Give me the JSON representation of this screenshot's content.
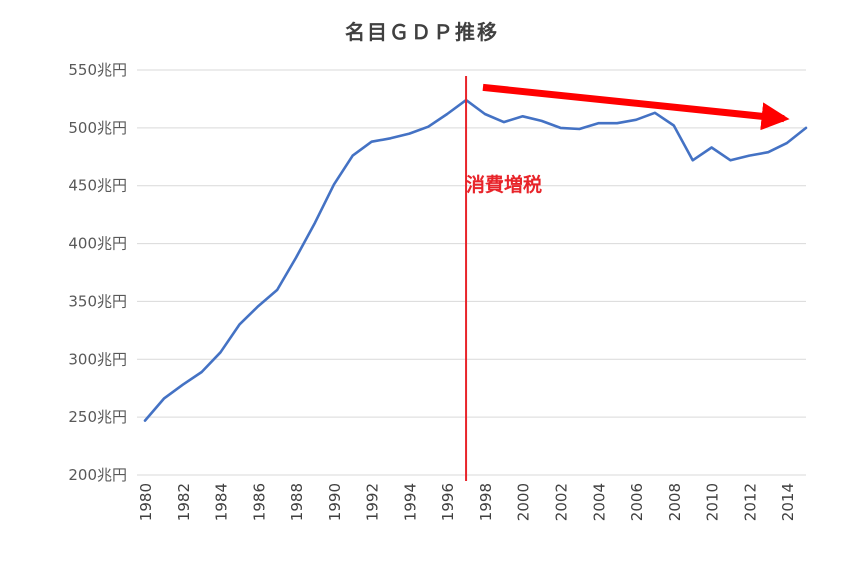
{
  "chart_data": {
    "type": "line",
    "title": "名目ＧＤＰ推移",
    "xlabel": "",
    "ylabel": "",
    "grid": "horizontal",
    "xlim": [
      1980,
      2015
    ],
    "ylim": [
      200,
      550
    ],
    "y_ticks": [
      200,
      250,
      300,
      350,
      400,
      450,
      500,
      550
    ],
    "y_tick_labels": [
      "200兆円",
      "250兆円",
      "300兆円",
      "350兆円",
      "400兆円",
      "450兆円",
      "500兆円",
      "550兆円"
    ],
    "x_ticks": [
      1980,
      1982,
      1984,
      1986,
      1988,
      1990,
      1992,
      1994,
      1996,
      1998,
      2000,
      2002,
      2004,
      2006,
      2008,
      2010,
      2012,
      2014
    ],
    "x_tick_labels": [
      "1980",
      "1982",
      "1984",
      "1986",
      "1988",
      "1990",
      "1992",
      "1994",
      "1996",
      "1998",
      "2000",
      "2002",
      "2004",
      "2006",
      "2008",
      "2010",
      "2012",
      "2014"
    ],
    "series": [
      {
        "color": "#4472c4",
        "x": [
          1980,
          1981,
          1982,
          1983,
          1984,
          1985,
          1986,
          1987,
          1988,
          1989,
          1990,
          1991,
          1992,
          1993,
          1994,
          1995,
          1996,
          1997,
          1998,
          1999,
          2000,
          2001,
          2002,
          2003,
          2004,
          2005,
          2006,
          2007,
          2008,
          2009,
          2010,
          2011,
          2012,
          2013,
          2014,
          2015
        ],
        "values": [
          247,
          266,
          278,
          289,
          306,
          330,
          346,
          360,
          388,
          418,
          451,
          476,
          488,
          491,
          495,
          501,
          512,
          524,
          512,
          505,
          510,
          506,
          500,
          499,
          504,
          504,
          507,
          513,
          502,
          472,
          483,
          472,
          476,
          479,
          487,
          500
        ]
      }
    ],
    "annotations": {
      "vline": {
        "x": 1997,
        "color": "#e8242a",
        "label": "消費増税"
      },
      "trend_arrow": {
        "from": [
          1998,
          535
        ],
        "to": [
          2015,
          508
        ],
        "color": "#ff0000"
      }
    }
  }
}
